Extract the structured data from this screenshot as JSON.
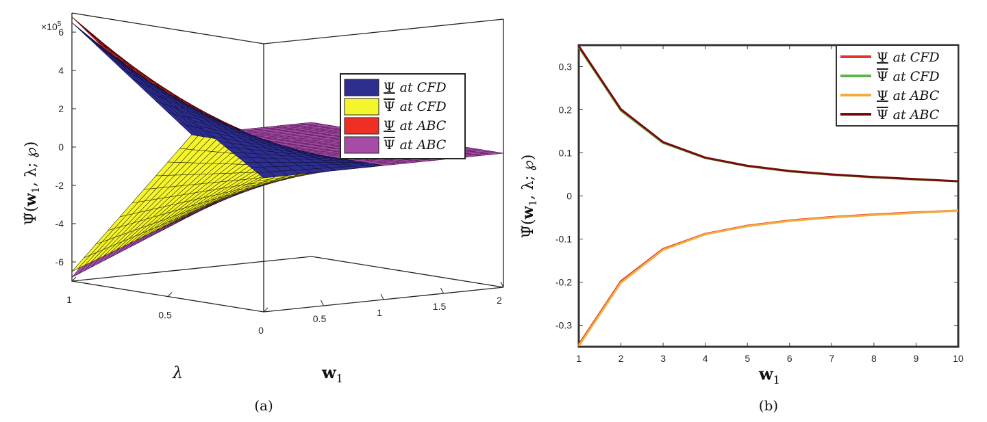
{
  "colors": {
    "psi_lower_cfd_surface": "#2e2e8f",
    "psi_upper_cfd_surface": "#f5f52e",
    "psi_lower_abc_surface": "#ee3024",
    "psi_upper_abc_surface": "#a64ca6",
    "line_psi_lower_cfd": "#e8322a",
    "line_psi_upper_cfd": "#5cb34a",
    "line_psi_lower_abc": "#f0ad3c",
    "line_psi_upper_abc": "#7a0a0a"
  },
  "chart_data": [
    {
      "type": "surface",
      "caption": "(a)",
      "exponent_label": "×10",
      "exponent_power": "5",
      "xlabel": "λ",
      "ylabel_main": "Ψ̃(",
      "ylabel_w": "w",
      "ylabel_sub": "1",
      "ylabel_rest": ", λ; ℘)",
      "zlabel": "w",
      "zlabel_sub": "1",
      "z_axis_ticks": [
        "6",
        "4",
        "2",
        "0",
        "-2",
        "-4",
        "-6"
      ],
      "lambda_ticks": [
        "1",
        "0.5",
        "0"
      ],
      "w1_ticks": [
        "0.5",
        "1",
        "1.5",
        "2"
      ],
      "zlim": [
        -7,
        7
      ],
      "lambda_range": [
        0,
        1
      ],
      "w1_range": [
        0,
        2
      ],
      "legend": [
        {
          "label": "Ψ",
          "suffix": "at CFD",
          "bar": "under",
          "color": "#2e2e8f"
        },
        {
          "label": "Ψ",
          "suffix": "at CFD",
          "bar": "over",
          "color": "#f5f52e"
        },
        {
          "label": "Ψ",
          "suffix": "at ABC",
          "bar": "under",
          "color": "#ee3024"
        },
        {
          "label": "Ψ",
          "suffix": "at ABC",
          "bar": "over",
          "color": "#a64ca6"
        }
      ],
      "surfaces": [
        {
          "name": "Ψ at CFD",
          "lambda_max_value": 6.5,
          "at_w1_zero": 0
        },
        {
          "name": "Ψ̄ at CFD",
          "lambda_max_value": -6.5,
          "at_w1_zero": 0
        },
        {
          "name": "Ψ at ABC",
          "lambda_max_value": 6.8,
          "at_w1_zero": 0
        },
        {
          "name": "Ψ̄ at ABC",
          "lambda_max_value": -6.8,
          "at_w1_zero": 0
        }
      ]
    },
    {
      "type": "line",
      "caption": "(b)",
      "xlabel": "w",
      "xlabel_sub": "1",
      "ylabel_main": "Ψ̃(",
      "ylabel_w": "w",
      "ylabel_sub": "1",
      "ylabel_rest": ", λ; ℘)",
      "x": [
        1,
        2,
        3,
        4,
        5,
        6,
        7,
        8,
        9,
        10
      ],
      "xlim": [
        1,
        10
      ],
      "ylim": [
        -0.35,
        0.35
      ],
      "x_ticks": [
        "1",
        "2",
        "3",
        "4",
        "5",
        "6",
        "7",
        "8",
        "9",
        "10"
      ],
      "y_ticks": [
        "0.3",
        "0.2",
        "0.1",
        "0",
        "-0.1",
        "-0.2",
        "-0.3"
      ],
      "y_tick_values": [
        0.3,
        0.2,
        0.1,
        0,
        -0.1,
        -0.2,
        -0.3
      ],
      "legend_placement": "top-right",
      "series": [
        {
          "name": "Ψ",
          "suffix": "at CFD",
          "bar": "under",
          "color": "#e8322a",
          "values": [
            -0.345,
            -0.198,
            -0.123,
            -0.088,
            -0.069,
            -0.057,
            -0.049,
            -0.043,
            -0.038,
            -0.034
          ]
        },
        {
          "name": "Ψ",
          "suffix": "at CFD",
          "bar": "over",
          "color": "#5cb34a",
          "values": [
            0.345,
            0.198,
            0.123,
            0.088,
            0.069,
            0.057,
            0.049,
            0.043,
            0.038,
            0.034
          ]
        },
        {
          "name": "Ψ",
          "suffix": "at ABC",
          "bar": "under",
          "color": "#f0ad3c",
          "values": [
            -0.348,
            -0.201,
            -0.125,
            -0.089,
            -0.07,
            -0.058,
            -0.05,
            -0.044,
            -0.039,
            -0.034
          ]
        },
        {
          "name": "Ψ",
          "suffix": "at ABC",
          "bar": "over",
          "color": "#7a0a0a",
          "values": [
            0.348,
            0.201,
            0.125,
            0.089,
            0.07,
            0.058,
            0.05,
            0.044,
            0.039,
            0.034
          ]
        }
      ]
    }
  ]
}
